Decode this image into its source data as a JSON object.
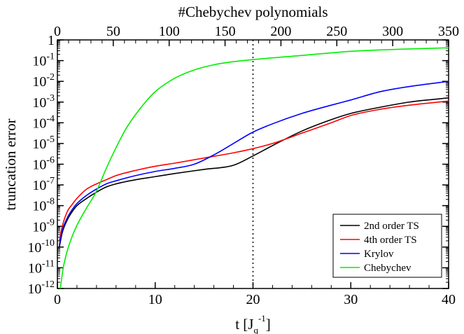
{
  "chart_data": {
    "type": "line",
    "xlabel_main": "t [J",
    "xlabel_sub": "q",
    "xlabel_sup": "-1",
    "xlabel_close": "]",
    "ylabel": "truncation error",
    "x2label": "#Chebychev polynomials",
    "xlim": [
      0,
      40
    ],
    "x2lim": [
      0,
      350
    ],
    "ylim_log10": [
      -12,
      0
    ],
    "yscale": "log",
    "x_ticks": [
      0,
      10,
      20,
      30,
      40
    ],
    "x2_ticks": [
      0,
      50,
      100,
      150,
      200,
      250,
      300,
      350
    ],
    "y_ticks": [
      {
        "base": "1",
        "exp": ""
      },
      {
        "base": "10",
        "exp": "-1"
      },
      {
        "base": "10",
        "exp": "-2"
      },
      {
        "base": "10",
        "exp": "-3"
      },
      {
        "base": "10",
        "exp": "-4"
      },
      {
        "base": "10",
        "exp": "-5"
      },
      {
        "base": "10",
        "exp": "-6"
      },
      {
        "base": "10",
        "exp": "-7"
      },
      {
        "base": "10",
        "exp": "-8"
      },
      {
        "base": "10",
        "exp": "-9"
      },
      {
        "base": "10",
        "exp": "-10"
      },
      {
        "base": "10",
        "exp": "-11"
      },
      {
        "base": "10",
        "exp": "-12"
      }
    ],
    "vline_x": 20,
    "legend_position": "bottom-right",
    "series": [
      {
        "name": "2nd order TS",
        "color": "#000000",
        "x": [
          0.2,
          0.5,
          1,
          1.5,
          2,
          3,
          4,
          5,
          6,
          8,
          10,
          12,
          15,
          18,
          20,
          22,
          25,
          28,
          30,
          33,
          36,
          40
        ],
        "log10y": [
          -10,
          -9.3,
          -8.7,
          -8.3,
          -8.0,
          -7.65,
          -7.35,
          -7.1,
          -6.95,
          -6.75,
          -6.6,
          -6.45,
          -6.25,
          -6.05,
          -5.6,
          -5.1,
          -4.4,
          -3.85,
          -3.55,
          -3.25,
          -3.0,
          -2.8
        ]
      },
      {
        "name": "4th order TS",
        "color": "#ff0000",
        "x": [
          0.2,
          0.5,
          1,
          1.5,
          2,
          3,
          4,
          5,
          6,
          8,
          10,
          12,
          15,
          18,
          20,
          22,
          25,
          28,
          30,
          33,
          36,
          40
        ],
        "log10y": [
          -9.7,
          -9.0,
          -8.3,
          -7.95,
          -7.65,
          -7.2,
          -6.95,
          -6.75,
          -6.55,
          -6.3,
          -6.1,
          -5.95,
          -5.7,
          -5.45,
          -5.25,
          -5.0,
          -4.5,
          -4.0,
          -3.65,
          -3.35,
          -3.15,
          -2.95
        ]
      },
      {
        "name": "Krylov",
        "color": "#0000ff",
        "x": [
          0.2,
          0.5,
          1,
          1.5,
          2,
          3,
          4,
          5,
          6,
          8,
          10,
          12,
          14,
          16,
          18,
          20,
          22,
          25,
          28,
          30,
          33,
          36,
          40
        ],
        "log10y": [
          -9.9,
          -9.2,
          -8.6,
          -8.2,
          -7.9,
          -7.5,
          -7.2,
          -6.95,
          -6.8,
          -6.55,
          -6.35,
          -6.2,
          -6.0,
          -5.55,
          -5.0,
          -4.45,
          -4.05,
          -3.55,
          -3.15,
          -2.9,
          -2.5,
          -2.25,
          -2.0
        ]
      },
      {
        "name": "Chebychev",
        "color": "#00ee00",
        "x": [
          0.3,
          0.6,
          1,
          1.5,
          2,
          3,
          4,
          5,
          6,
          7,
          8,
          9,
          10,
          12,
          14,
          16,
          18,
          20,
          25,
          30,
          35,
          40
        ],
        "log10y": [
          -12,
          -11,
          -10.2,
          -9.5,
          -8.95,
          -8.1,
          -7.3,
          -6.2,
          -5.2,
          -4.3,
          -3.6,
          -3.0,
          -2.5,
          -1.85,
          -1.45,
          -1.2,
          -1.05,
          -0.95,
          -0.75,
          -0.55,
          -0.45,
          -0.38
        ]
      }
    ]
  }
}
